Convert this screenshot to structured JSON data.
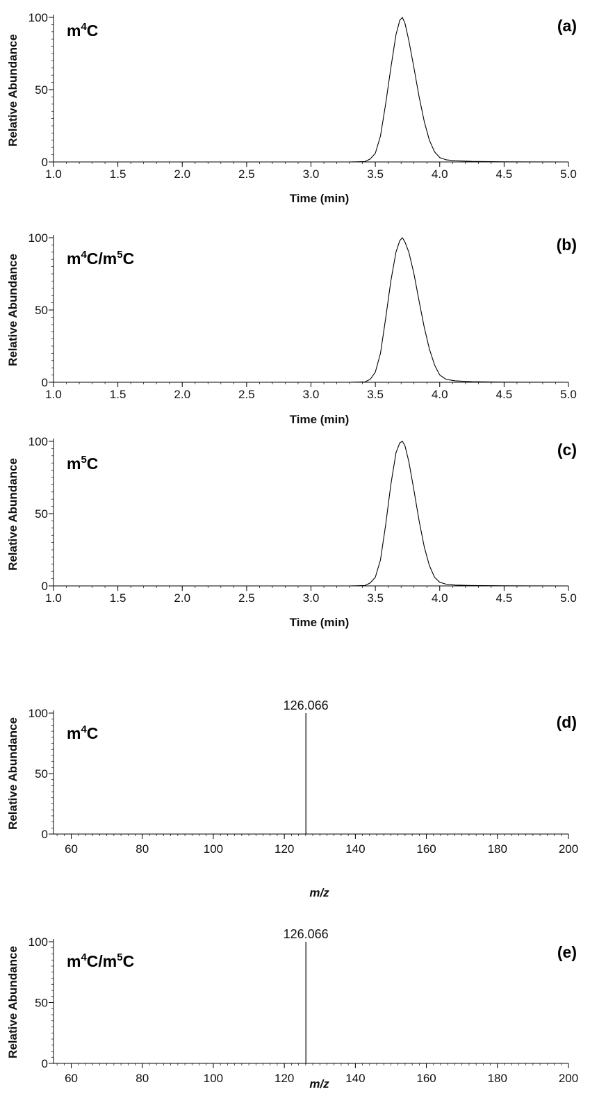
{
  "chart_data": [
    {
      "type": "line",
      "panel_label": "(a)",
      "compound_label": "m4C",
      "compound": {
        "base": "m",
        "sup": "4",
        "tail": "C"
      },
      "xlabel": "Time (min)",
      "ylabel": "Relative Abundance",
      "xlim": [
        1.0,
        5.0
      ],
      "ylim": [
        0,
        100
      ],
      "xticks": [
        1.0,
        1.5,
        2.0,
        2.5,
        3.0,
        3.5,
        4.0,
        4.5,
        5.0
      ],
      "xtick_labels": [
        "1.0",
        "1.5",
        "2.0",
        "2.5",
        "3.0",
        "3.5",
        "4.0",
        "4.5",
        "5.0"
      ],
      "yticks": [
        0,
        50,
        100
      ],
      "ytick_labels": [
        "0",
        "50",
        "100"
      ],
      "series": [
        {
          "x": [
            1.0,
            3.3,
            3.42,
            3.46,
            3.5,
            3.54,
            3.58,
            3.62,
            3.66,
            3.69,
            3.71,
            3.73,
            3.76,
            3.8,
            3.84,
            3.88,
            3.92,
            3.96,
            4.0,
            4.05,
            4.12,
            4.25,
            4.5,
            5.0
          ],
          "y": [
            0,
            0,
            0.3,
            2,
            6,
            18,
            40,
            65,
            88,
            98,
            100,
            96,
            84,
            65,
            45,
            28,
            15,
            7,
            3,
            1.5,
            0.8,
            0.4,
            0.1,
            0
          ]
        }
      ]
    },
    {
      "type": "line",
      "panel_label": "(b)",
      "compound_label": "m4C/m5C",
      "compound": {
        "base": "m",
        "sup": "4",
        "tail": "C/m",
        "sup2": "5",
        "tail2": "C"
      },
      "xlabel": "Time (min)",
      "ylabel": "Relative Abundance",
      "xlim": [
        1.0,
        5.0
      ],
      "ylim": [
        0,
        100
      ],
      "xticks": [
        1.0,
        1.5,
        2.0,
        2.5,
        3.0,
        3.5,
        4.0,
        4.5,
        5.0
      ],
      "xtick_labels": [
        "1.0",
        "1.5",
        "2.0",
        "2.5",
        "3.0",
        "3.5",
        "4.0",
        "4.5",
        "5.0"
      ],
      "yticks": [
        0,
        50,
        100
      ],
      "ytick_labels": [
        "0",
        "50",
        "100"
      ],
      "series": [
        {
          "x": [
            1.0,
            3.3,
            3.42,
            3.46,
            3.5,
            3.54,
            3.58,
            3.62,
            3.66,
            3.69,
            3.71,
            3.73,
            3.76,
            3.8,
            3.84,
            3.88,
            3.92,
            3.96,
            4.0,
            4.05,
            4.12,
            4.25,
            4.5,
            5.0
          ],
          "y": [
            0,
            0,
            0.3,
            2,
            7,
            20,
            44,
            70,
            90,
            98,
            100,
            97,
            90,
            75,
            56,
            38,
            23,
            12,
            5,
            2,
            1,
            0.4,
            0.1,
            0
          ]
        }
      ]
    },
    {
      "type": "line",
      "panel_label": "(c)",
      "compound_label": "m5C",
      "compound": {
        "base": "m",
        "sup": "5",
        "tail": "C"
      },
      "xlabel": "Time (min)",
      "ylabel": "Relative Abundance",
      "xlim": [
        1.0,
        5.0
      ],
      "ylim": [
        0,
        100
      ],
      "xticks": [
        1.0,
        1.5,
        2.0,
        2.5,
        3.0,
        3.5,
        4.0,
        4.5,
        5.0
      ],
      "xtick_labels": [
        "1.0",
        "1.5",
        "2.0",
        "2.5",
        "3.0",
        "3.5",
        "4.0",
        "4.5",
        "5.0"
      ],
      "yticks": [
        0,
        50,
        100
      ],
      "ytick_labels": [
        "0",
        "50",
        "100"
      ],
      "series": [
        {
          "x": [
            1.0,
            3.3,
            3.42,
            3.46,
            3.5,
            3.54,
            3.58,
            3.62,
            3.66,
            3.69,
            3.71,
            3.73,
            3.76,
            3.8,
            3.84,
            3.88,
            3.92,
            3.96,
            4.0,
            4.05,
            4.12,
            4.25,
            4.5,
            5.0
          ],
          "y": [
            0,
            0,
            0.3,
            2,
            6,
            18,
            42,
            70,
            92,
            99,
            100,
            97,
            86,
            66,
            45,
            27,
            14,
            6,
            2.5,
            1.2,
            0.6,
            0.3,
            0.1,
            0
          ]
        }
      ]
    },
    {
      "type": "bar",
      "panel_label": "(d)",
      "compound_label": "m4C",
      "compound": {
        "base": "m",
        "sup": "4",
        "tail": "C"
      },
      "xlabel": "m/z",
      "ylabel": "Relative Abundance",
      "xlim": [
        55,
        200
      ],
      "ylim": [
        0,
        100
      ],
      "xticks": [
        60,
        80,
        100,
        120,
        140,
        160,
        180,
        200
      ],
      "xtick_labels": [
        "60",
        "80",
        "100",
        "120",
        "140",
        "160",
        "180",
        "200"
      ],
      "yticks": [
        0,
        50,
        100
      ],
      "ytick_labels": [
        "0",
        "50",
        "100"
      ],
      "peaks": [
        {
          "mz": 126.066,
          "intensity": 100,
          "label": "126.066"
        }
      ]
    },
    {
      "type": "bar",
      "panel_label": "(e)",
      "compound_label": "m4C/m5C",
      "compound": {
        "base": "m",
        "sup": "4",
        "tail": "C/m",
        "sup2": "5",
        "tail2": "C"
      },
      "xlabel": "m/z",
      "ylabel": "Relative Abundance",
      "xlim": [
        55,
        200
      ],
      "ylim": [
        0,
        100
      ],
      "xticks": [
        60,
        80,
        100,
        120,
        140,
        160,
        180,
        200
      ],
      "xtick_labels": [
        "60",
        "80",
        "100",
        "120",
        "140",
        "160",
        "180",
        "200"
      ],
      "yticks": [
        0,
        50,
        100
      ],
      "ytick_labels": [
        "0",
        "50",
        "100"
      ],
      "peaks": [
        {
          "mz": 126.066,
          "intensity": 100,
          "label": "126.066"
        }
      ]
    }
  ]
}
